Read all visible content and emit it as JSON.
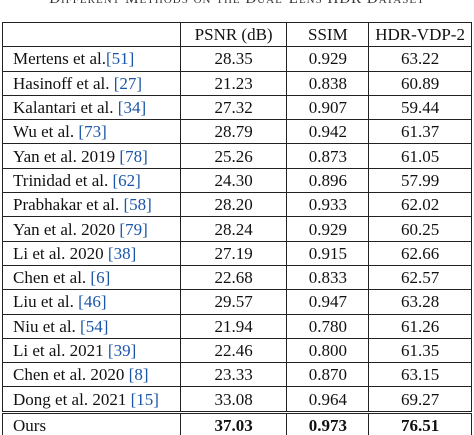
{
  "caption": "Different Methods on the Dual-Lens HDR Dataset",
  "table": {
    "header": [
      "",
      "PSNR (dB)",
      "SSIM",
      "HDR-VDP-2"
    ],
    "rows": [
      {
        "method": "Mertens et al.",
        "ref": "[51]",
        "values": [
          "28.35",
          "0.929",
          "63.22"
        ]
      },
      {
        "method": "Hasinoff et al. ",
        "ref": "[27]",
        "values": [
          "21.23",
          "0.838",
          "60.89"
        ]
      },
      {
        "method": "Kalantari et al. ",
        "ref": "[34]",
        "values": [
          "27.32",
          "0.907",
          "59.44"
        ]
      },
      {
        "method": "Wu et al. ",
        "ref": "[73]",
        "values": [
          "28.79",
          "0.942",
          "61.37"
        ]
      },
      {
        "method": "Yan et al. 2019 ",
        "ref": "[78]",
        "values": [
          "25.26",
          "0.873",
          "61.05"
        ]
      },
      {
        "method": "Trinidad et al. ",
        "ref": "[62]",
        "values": [
          "24.30",
          "0.896",
          "57.99"
        ]
      },
      {
        "method": "Prabhakar et al. ",
        "ref": "[58]",
        "values": [
          "28.20",
          "0.933",
          "62.02"
        ]
      },
      {
        "method": "Yan et al. 2020 ",
        "ref": "[79]",
        "values": [
          "28.24",
          "0.929",
          "60.25"
        ]
      },
      {
        "method": "Li et al. 2020 ",
        "ref": "[38]",
        "values": [
          "27.19",
          "0.915",
          "62.66"
        ]
      },
      {
        "method": "Chen et al. ",
        "ref": "[6]",
        "values": [
          "22.68",
          "0.833",
          "62.57"
        ]
      },
      {
        "method": "Liu et al. ",
        "ref": "[46]",
        "values": [
          "29.57",
          "0.947",
          "63.28"
        ]
      },
      {
        "method": "Niu et al. ",
        "ref": "[54]",
        "values": [
          "21.94",
          "0.780",
          "61.26"
        ]
      },
      {
        "method": "Li et al. 2021 ",
        "ref": "[39]",
        "values": [
          "22.46",
          "0.800",
          "61.35"
        ]
      },
      {
        "method": "Chen et al. 2020 ",
        "ref": "[8]",
        "values": [
          "23.33",
          "0.870",
          "63.15"
        ]
      },
      {
        "method": "Dong et al. 2021 ",
        "ref": "[15]",
        "values": [
          "33.08",
          "0.964",
          "69.27"
        ]
      },
      {
        "method": "Ours",
        "values": [
          "37.03",
          "0.973",
          "76.51"
        ],
        "bold": true
      }
    ]
  }
}
